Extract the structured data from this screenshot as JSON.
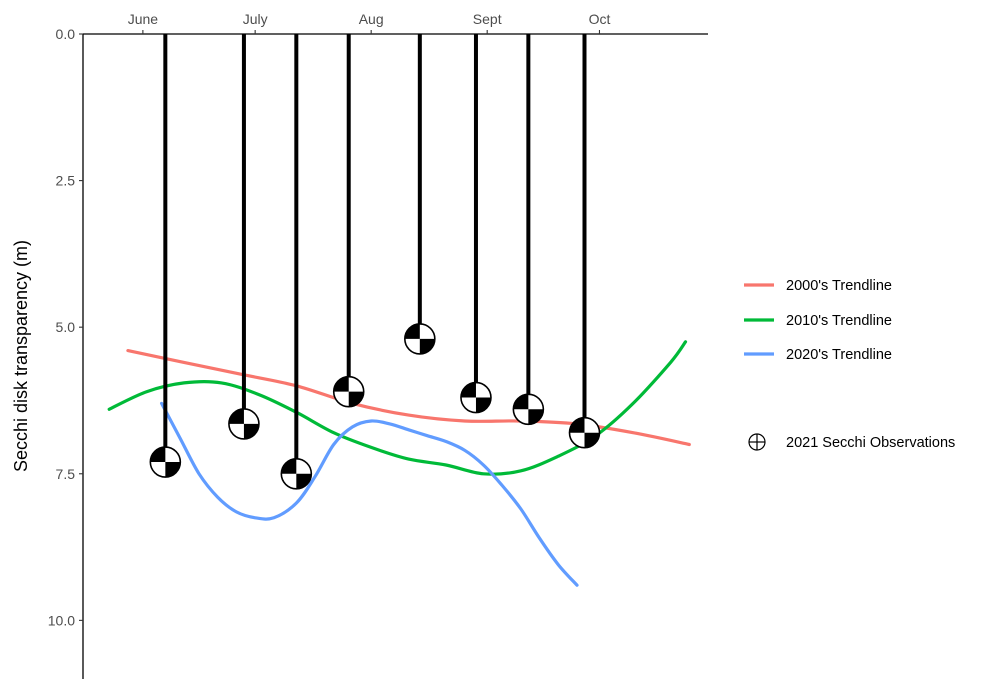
{
  "chart_data": {
    "type": "line",
    "title": "",
    "xlabel": "",
    "ylabel": "Secchi disk transparency (m)",
    "x_axis": {
      "position": "top",
      "ticks": [
        {
          "label": "June",
          "day": 152
        },
        {
          "label": "July",
          "day": 182
        },
        {
          "label": "Aug",
          "day": 213
        },
        {
          "label": "Sept",
          "day": 244
        },
        {
          "label": "Oct",
          "day": 274
        }
      ],
      "xlim_day": [
        136,
        303
      ]
    },
    "y_axis": {
      "reversed": true,
      "ylim": [
        0,
        11
      ],
      "ticks": [
        {
          "value": 0,
          "label": "0.0"
        },
        {
          "value": 2.5,
          "label": "2.5"
        },
        {
          "value": 5,
          "label": "5.0"
        },
        {
          "value": 7.5,
          "label": "7.5"
        },
        {
          "value": 10,
          "label": "10.0"
        }
      ]
    },
    "grid": false,
    "legend_position": "right",
    "series": [
      {
        "name": "2000's Trendline",
        "color": "#F8766D",
        "day": [
          148,
          163,
          178,
          193,
          208,
          223,
          238,
          253,
          268,
          283,
          298
        ],
        "values": [
          5.4,
          5.6,
          5.8,
          6.0,
          6.3,
          6.5,
          6.6,
          6.6,
          6.65,
          6.8,
          7.0
        ]
      },
      {
        "name": "2010's Trendline",
        "color": "#00BA38",
        "day": [
          143,
          153,
          163,
          173,
          183,
          193,
          203,
          213,
          223,
          233,
          243,
          253,
          263,
          273,
          283,
          293,
          297
        ],
        "values": [
          6.4,
          6.1,
          5.95,
          5.95,
          6.15,
          6.45,
          6.8,
          7.05,
          7.25,
          7.35,
          7.5,
          7.45,
          7.2,
          6.85,
          6.3,
          5.6,
          5.25
        ]
      },
      {
        "name": "2020's Trendline",
        "color": "#619CFF",
        "day": [
          157,
          162,
          167,
          172,
          177,
          182,
          187,
          193,
          198,
          203,
          208,
          213,
          218,
          223,
          228,
          233,
          238,
          243,
          248,
          253,
          258,
          263,
          268
        ],
        "values": [
          6.3,
          6.9,
          7.5,
          7.9,
          8.15,
          8.25,
          8.25,
          8.0,
          7.55,
          7.0,
          6.7,
          6.6,
          6.65,
          6.75,
          6.85,
          6.95,
          7.1,
          7.35,
          7.7,
          8.1,
          8.6,
          9.05,
          9.4
        ]
      }
    ],
    "observations": {
      "name": "2021 Secchi Observations",
      "day": [
        158,
        179,
        193,
        207,
        226,
        241,
        255,
        270
      ],
      "values": [
        7.3,
        6.65,
        7.5,
        6.1,
        5.2,
        6.2,
        6.4,
        6.8
      ]
    }
  }
}
